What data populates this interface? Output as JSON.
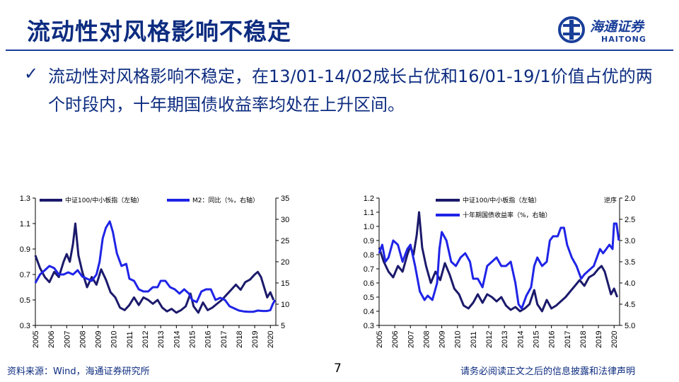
{
  "slide": {
    "title": "流动性对风格影响不稳定",
    "bullet": "流动性对风格影响不稳定，在13/01-14/02成长占优和16/01-19/1价值占优的两个时段内，十年期国债收益率均处在上升区间。",
    "page_number": "7",
    "source": "资料来源：Wind，海通证券研究所",
    "disclaimer": "请务必阅读正文之后的信息披露和法律声明"
  },
  "logo": {
    "cn": "海通证券",
    "en": "HAITONG"
  },
  "colors": {
    "title": "#0d2c80",
    "series_dark": "#1b1a6b",
    "series_blue": "#1f24e6",
    "rule": "#1a3f99"
  },
  "chart_data": [
    {
      "type": "line",
      "x_label_years": [
        "2005",
        "2006",
        "2007",
        "2008",
        "2009",
        "2010",
        "2011",
        "2012",
        "2013",
        "2014",
        "2015",
        "2016",
        "2017",
        "2018",
        "2019",
        "2020"
      ],
      "y_left": {
        "ticks": [
          "1.3",
          "1.1",
          "0.9",
          "0.7",
          "0.5",
          "0.3"
        ],
        "range": [
          0.3,
          1.3
        ]
      },
      "y_right": {
        "ticks": [
          "35",
          "30",
          "25",
          "20",
          "15",
          "10",
          "5"
        ],
        "range": [
          5,
          35
        ]
      },
      "series": [
        {
          "name": "中证100/中小板指（左轴）",
          "axis": "left",
          "points": [
            [
              2005.0,
              0.85
            ],
            [
              2005.3,
              0.75
            ],
            [
              2005.6,
              0.68
            ],
            [
              2005.9,
              0.64
            ],
            [
              2006.2,
              0.72
            ],
            [
              2006.5,
              0.68
            ],
            [
              2006.8,
              0.8
            ],
            [
              2007.0,
              0.86
            ],
            [
              2007.2,
              0.8
            ],
            [
              2007.4,
              0.94
            ],
            [
              2007.55,
              1.1
            ],
            [
              2007.75,
              0.85
            ],
            [
              2008.0,
              0.72
            ],
            [
              2008.3,
              0.6
            ],
            [
              2008.6,
              0.68
            ],
            [
              2008.9,
              0.62
            ],
            [
              2009.2,
              0.74
            ],
            [
              2009.5,
              0.66
            ],
            [
              2009.8,
              0.56
            ],
            [
              2010.1,
              0.52
            ],
            [
              2010.4,
              0.44
            ],
            [
              2010.7,
              0.42
            ],
            [
              2011.0,
              0.46
            ],
            [
              2011.3,
              0.52
            ],
            [
              2011.6,
              0.46
            ],
            [
              2011.9,
              0.52
            ],
            [
              2012.2,
              0.5
            ],
            [
              2012.5,
              0.47
            ],
            [
              2012.8,
              0.5
            ],
            [
              2013.1,
              0.44
            ],
            [
              2013.4,
              0.41
            ],
            [
              2013.7,
              0.43
            ],
            [
              2014.0,
              0.4
            ],
            [
              2014.3,
              0.42
            ],
            [
              2014.6,
              0.45
            ],
            [
              2014.9,
              0.55
            ],
            [
              2015.1,
              0.45
            ],
            [
              2015.4,
              0.4
            ],
            [
              2015.7,
              0.48
            ],
            [
              2016.0,
              0.42
            ],
            [
              2016.3,
              0.44
            ],
            [
              2016.6,
              0.47
            ],
            [
              2016.9,
              0.5
            ],
            [
              2017.2,
              0.54
            ],
            [
              2017.5,
              0.58
            ],
            [
              2017.8,
              0.62
            ],
            [
              2018.1,
              0.58
            ],
            [
              2018.4,
              0.64
            ],
            [
              2018.7,
              0.66
            ],
            [
              2019.0,
              0.7
            ],
            [
              2019.2,
              0.72
            ],
            [
              2019.4,
              0.68
            ],
            [
              2019.6,
              0.6
            ],
            [
              2019.8,
              0.52
            ],
            [
              2020.0,
              0.56
            ],
            [
              2020.2,
              0.5
            ]
          ]
        },
        {
          "name": "M2：同比（%，右轴）",
          "axis": "right",
          "points": [
            [
              2005.0,
              15
            ],
            [
              2005.3,
              17
            ],
            [
              2005.6,
              18
            ],
            [
              2005.9,
              19
            ],
            [
              2006.2,
              18.5
            ],
            [
              2006.5,
              17
            ],
            [
              2006.8,
              17
            ],
            [
              2007.1,
              17.5
            ],
            [
              2007.4,
              17
            ],
            [
              2007.7,
              18
            ],
            [
              2008.0,
              16.5
            ],
            [
              2008.3,
              16
            ],
            [
              2008.6,
              15.5
            ],
            [
              2008.9,
              17
            ],
            [
              2009.1,
              20
            ],
            [
              2009.3,
              25.5
            ],
            [
              2009.5,
              28
            ],
            [
              2009.75,
              29.5
            ],
            [
              2009.95,
              27
            ],
            [
              2010.2,
              22
            ],
            [
              2010.5,
              19
            ],
            [
              2010.8,
              19.5
            ],
            [
              2011.0,
              16
            ],
            [
              2011.3,
              15.5
            ],
            [
              2011.6,
              13.5
            ],
            [
              2011.9,
              13
            ],
            [
              2012.2,
              13
            ],
            [
              2012.5,
              14
            ],
            [
              2012.8,
              14
            ],
            [
              2013.0,
              15.5
            ],
            [
              2013.3,
              15.5
            ],
            [
              2013.6,
              14
            ],
            [
              2013.9,
              13.5
            ],
            [
              2014.2,
              12.5
            ],
            [
              2014.5,
              13.5
            ],
            [
              2014.8,
              12.5
            ],
            [
              2015.0,
              11
            ],
            [
              2015.3,
              10.5
            ],
            [
              2015.6,
              13
            ],
            [
              2015.9,
              13.5
            ],
            [
              2016.2,
              13.5
            ],
            [
              2016.5,
              11
            ],
            [
              2016.8,
              11.5
            ],
            [
              2017.1,
              11
            ],
            [
              2017.4,
              9.5
            ],
            [
              2017.7,
              9
            ],
            [
              2018.0,
              8.5
            ],
            [
              2018.3,
              8.3
            ],
            [
              2018.6,
              8.2
            ],
            [
              2018.9,
              8.2
            ],
            [
              2019.2,
              8.5
            ],
            [
              2019.5,
              8.4
            ],
            [
              2019.8,
              8.4
            ],
            [
              2020.0,
              8.6
            ],
            [
              2020.15,
              10
            ],
            [
              2020.3,
              11
            ]
          ]
        }
      ]
    },
    {
      "type": "line",
      "x_label_years": [
        "2005",
        "2006",
        "2007",
        "2008",
        "2009",
        "2010",
        "2011",
        "2012",
        "2013",
        "2014",
        "2015",
        "2016",
        "2017",
        "2018",
        "2019",
        "2020"
      ],
      "y_left": {
        "ticks": [
          "1.2",
          "1.1",
          "1.0",
          "0.9",
          "0.8",
          "0.7",
          "0.6",
          "0.5",
          "0.4",
          "0.3"
        ],
        "range": [
          0.3,
          1.2
        ]
      },
      "y_right": {
        "ticks": [
          "2.0",
          "2.5",
          "3.0",
          "3.5",
          "4.0",
          "4.5",
          "5.0"
        ],
        "range": [
          2.0,
          5.0
        ],
        "inverted": true,
        "note": "逆序"
      },
      "series": [
        {
          "name": "中证100/中小板指（左轴）",
          "axis": "left",
          "points": [
            [
              2005.0,
              0.85
            ],
            [
              2005.3,
              0.75
            ],
            [
              2005.6,
              0.68
            ],
            [
              2005.9,
              0.64
            ],
            [
              2006.2,
              0.72
            ],
            [
              2006.5,
              0.68
            ],
            [
              2006.8,
              0.8
            ],
            [
              2007.0,
              0.86
            ],
            [
              2007.2,
              0.8
            ],
            [
              2007.4,
              0.94
            ],
            [
              2007.55,
              1.1
            ],
            [
              2007.75,
              0.85
            ],
            [
              2008.0,
              0.72
            ],
            [
              2008.3,
              0.6
            ],
            [
              2008.6,
              0.68
            ],
            [
              2008.9,
              0.62
            ],
            [
              2009.2,
              0.74
            ],
            [
              2009.5,
              0.66
            ],
            [
              2009.8,
              0.56
            ],
            [
              2010.1,
              0.52
            ],
            [
              2010.4,
              0.44
            ],
            [
              2010.7,
              0.42
            ],
            [
              2011.0,
              0.46
            ],
            [
              2011.3,
              0.52
            ],
            [
              2011.6,
              0.46
            ],
            [
              2011.9,
              0.52
            ],
            [
              2012.2,
              0.5
            ],
            [
              2012.5,
              0.47
            ],
            [
              2012.8,
              0.5
            ],
            [
              2013.1,
              0.44
            ],
            [
              2013.4,
              0.41
            ],
            [
              2013.7,
              0.43
            ],
            [
              2014.0,
              0.4
            ],
            [
              2014.3,
              0.42
            ],
            [
              2014.6,
              0.45
            ],
            [
              2014.9,
              0.55
            ],
            [
              2015.1,
              0.45
            ],
            [
              2015.4,
              0.4
            ],
            [
              2015.7,
              0.48
            ],
            [
              2016.0,
              0.42
            ],
            [
              2016.3,
              0.44
            ],
            [
              2016.6,
              0.47
            ],
            [
              2016.9,
              0.5
            ],
            [
              2017.2,
              0.54
            ],
            [
              2017.5,
              0.58
            ],
            [
              2017.8,
              0.62
            ],
            [
              2018.1,
              0.58
            ],
            [
              2018.4,
              0.64
            ],
            [
              2018.7,
              0.66
            ],
            [
              2019.0,
              0.7
            ],
            [
              2019.2,
              0.72
            ],
            [
              2019.4,
              0.68
            ],
            [
              2019.6,
              0.6
            ],
            [
              2019.8,
              0.52
            ],
            [
              2020.0,
              0.56
            ],
            [
              2020.2,
              0.5
            ]
          ]
        },
        {
          "name": "十年期国债收益率（%，右轴）",
          "axis": "right",
          "points": [
            [
              2005.0,
              3.3
            ],
            [
              2005.2,
              3.1
            ],
            [
              2005.4,
              3.5
            ],
            [
              2005.6,
              3.4
            ],
            [
              2005.9,
              3.0
            ],
            [
              2006.2,
              3.1
            ],
            [
              2006.5,
              3.5
            ],
            [
              2006.8,
              3.2
            ],
            [
              2007.0,
              3.1
            ],
            [
              2007.3,
              3.6
            ],
            [
              2007.6,
              4.2
            ],
            [
              2007.9,
              4.4
            ],
            [
              2008.1,
              4.3
            ],
            [
              2008.4,
              4.4
            ],
            [
              2008.7,
              4.0
            ],
            [
              2008.85,
              3.2
            ],
            [
              2009.0,
              2.8
            ],
            [
              2009.3,
              3.0
            ],
            [
              2009.6,
              3.5
            ],
            [
              2009.9,
              3.6
            ],
            [
              2010.2,
              3.4
            ],
            [
              2010.5,
              3.3
            ],
            [
              2010.8,
              3.5
            ],
            [
              2011.0,
              3.9
            ],
            [
              2011.3,
              3.9
            ],
            [
              2011.6,
              4.1
            ],
            [
              2011.9,
              3.6
            ],
            [
              2012.2,
              3.5
            ],
            [
              2012.5,
              3.4
            ],
            [
              2012.8,
              3.6
            ],
            [
              2013.1,
              3.6
            ],
            [
              2013.4,
              3.5
            ],
            [
              2013.7,
              4.0
            ],
            [
              2013.9,
              4.5
            ],
            [
              2014.1,
              4.6
            ],
            [
              2014.4,
              4.3
            ],
            [
              2014.7,
              4.1
            ],
            [
              2014.9,
              3.6
            ],
            [
              2015.1,
              3.4
            ],
            [
              2015.4,
              3.6
            ],
            [
              2015.7,
              3.5
            ],
            [
              2015.9,
              3.0
            ],
            [
              2016.1,
              2.9
            ],
            [
              2016.4,
              2.9
            ],
            [
              2016.6,
              2.7
            ],
            [
              2016.8,
              2.7
            ],
            [
              2017.0,
              3.1
            ],
            [
              2017.3,
              3.4
            ],
            [
              2017.6,
              3.6
            ],
            [
              2017.9,
              3.9
            ],
            [
              2018.1,
              3.8
            ],
            [
              2018.4,
              3.7
            ],
            [
              2018.7,
              3.6
            ],
            [
              2018.9,
              3.4
            ],
            [
              2019.1,
              3.2
            ],
            [
              2019.3,
              3.3
            ],
            [
              2019.5,
              3.2
            ],
            [
              2019.7,
              3.1
            ],
            [
              2019.9,
              3.2
            ],
            [
              2020.0,
              2.6
            ],
            [
              2020.15,
              2.6
            ],
            [
              2020.3,
              3.0
            ]
          ]
        }
      ]
    }
  ]
}
